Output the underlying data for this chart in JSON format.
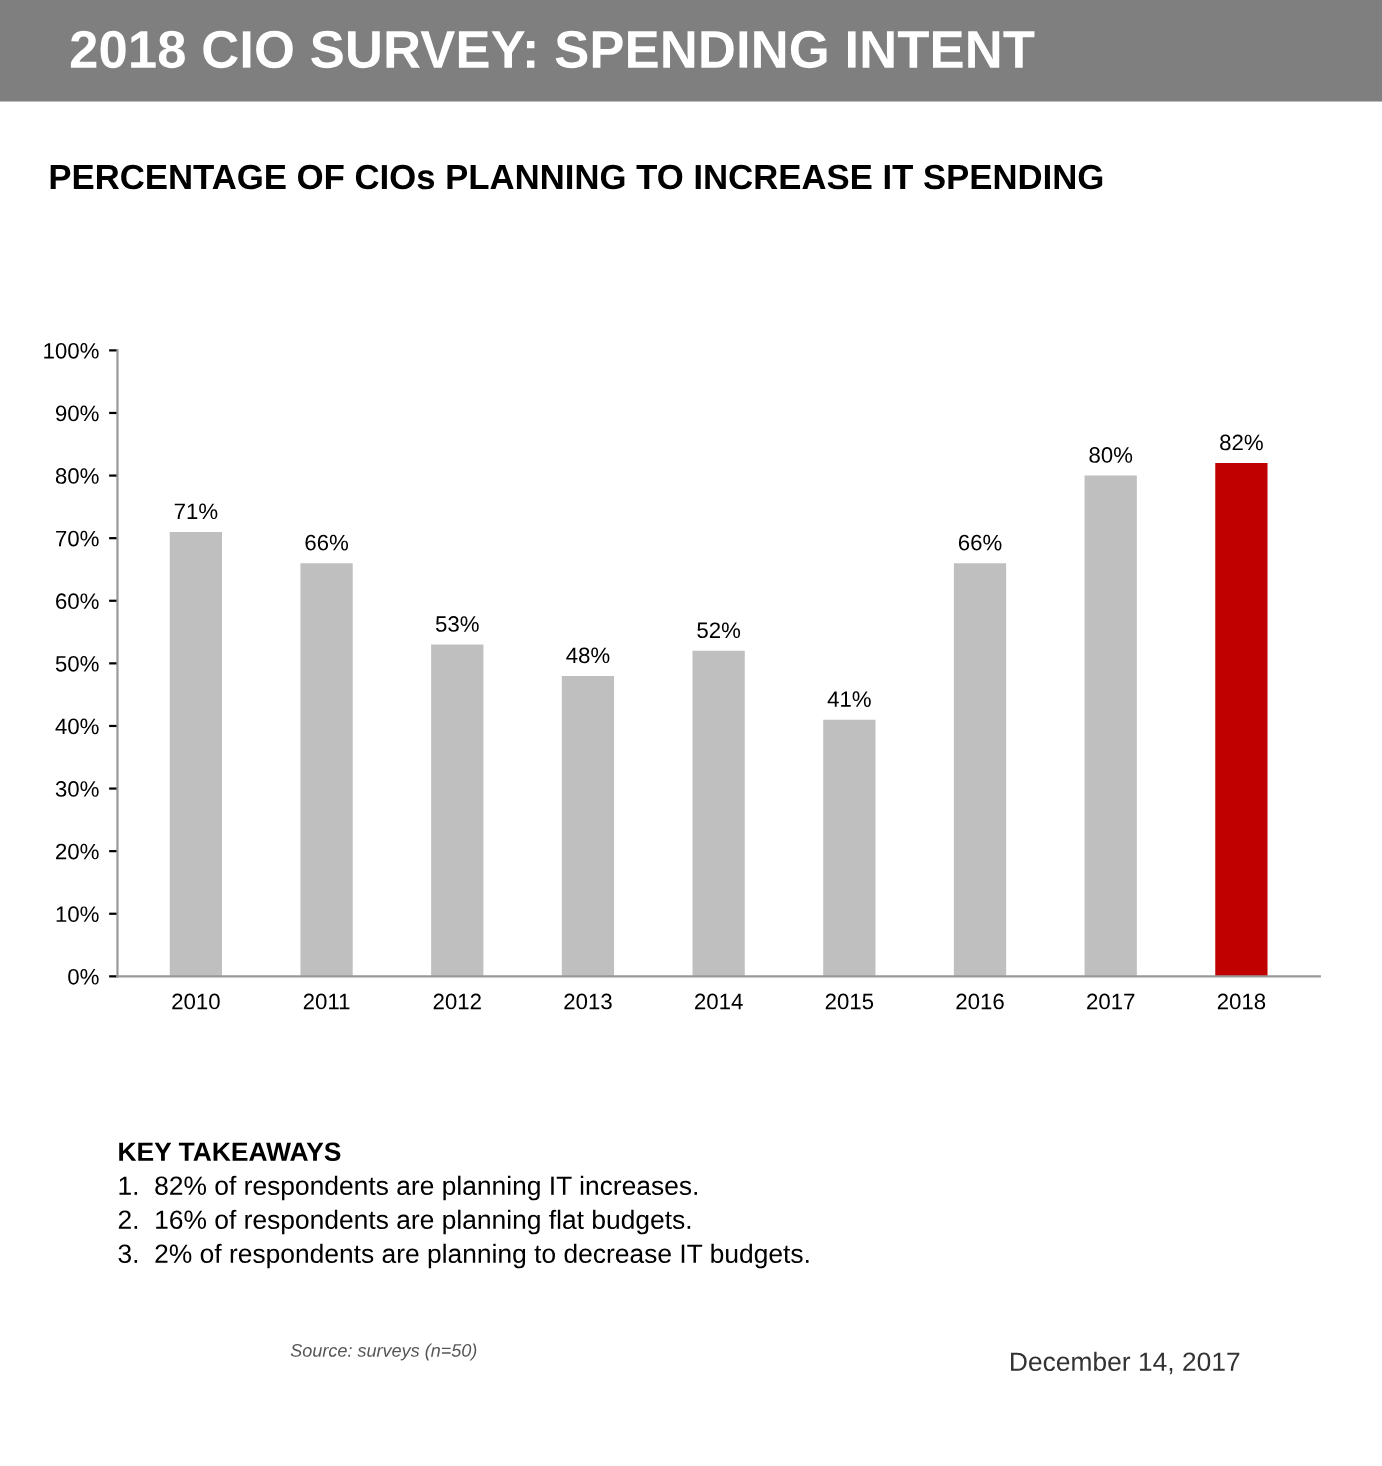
{
  "chart_data": {
    "type": "bar",
    "title": "2018 CIO SURVEY: SPENDING INTENT",
    "subtitle": "PERCENTAGE OF CIOs PLANNING TO INCREASE IT SPENDING",
    "categories": [
      "2010",
      "2011",
      "2012",
      "2013",
      "2014",
      "2015",
      "2016",
      "2017",
      "2018"
    ],
    "values": [
      71,
      66,
      53,
      48,
      52,
      41,
      66,
      80,
      82
    ],
    "colors": [
      "#bfbfbf",
      "#bfbfbf",
      "#bfbfbf",
      "#bfbfbf",
      "#bfbfbf",
      "#bfbfbf",
      "#bfbfbf",
      "#bfbfbf",
      "#c00000"
    ],
    "value_labels": [
      "71%",
      "66%",
      "53%",
      "48%",
      "52%",
      "41%",
      "66%",
      "80%",
      "82%"
    ],
    "ylim": [
      0,
      100
    ],
    "yticks": [
      {
        "value": 0,
        "label": "0%"
      },
      {
        "value": 10,
        "label": "10%"
      },
      {
        "value": 20,
        "label": "20%"
      },
      {
        "value": 30,
        "label": "30%"
      },
      {
        "value": 40,
        "label": "40%"
      },
      {
        "value": 50,
        "label": "50%"
      },
      {
        "value": 60,
        "label": "60%"
      },
      {
        "value": 70,
        "label": "70%"
      },
      {
        "value": 80,
        "label": "80%"
      },
      {
        "value": 90,
        "label": "90%"
      },
      {
        "value": 100,
        "label": "100%"
      }
    ],
    "grid": false,
    "legend": false,
    "annotations": [
      "KEY TAKEAWAYS",
      "1.  82% of respondents are planning IT increases.",
      "2.  16% of respondents are planning flat budgets.",
      "3.  2% of respondents are planning to decrease IT budgets.",
      "Source: surveys (n=50)",
      "December 14, 2017"
    ]
  }
}
